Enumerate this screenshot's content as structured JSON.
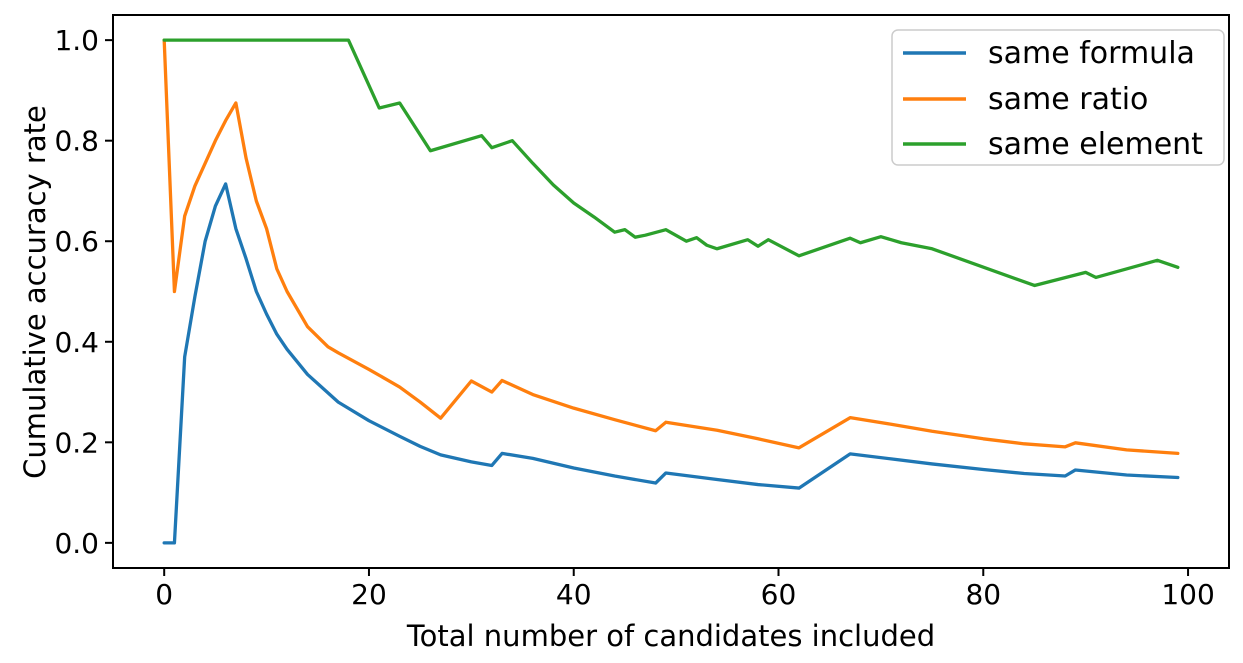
{
  "chart_data": {
    "type": "line",
    "title": "",
    "xlabel": "Total number of candidates included",
    "ylabel": "Cumulative accuracy rate",
    "xlim": [
      -5,
      104
    ],
    "ylim": [
      -0.05,
      1.05
    ],
    "grid": false,
    "xticks": {
      "values": [
        0,
        20,
        40,
        60,
        80,
        100
      ],
      "labels": [
        "0",
        "20",
        "40",
        "60",
        "80",
        "100"
      ]
    },
    "yticks": {
      "values": [
        0.0,
        0.2,
        0.4,
        0.6,
        0.8,
        1.0
      ],
      "labels": [
        "0.0",
        "0.2",
        "0.4",
        "0.6",
        "0.8",
        "1.0"
      ]
    },
    "legend": {
      "position": "upper right",
      "entries": [
        "same formula",
        "same ratio",
        "same element"
      ],
      "border_color": "#cccccc"
    },
    "colors": {
      "blue": "#1f77b4",
      "orange": "#ff7f0e",
      "green": "#2ca02c"
    },
    "series": [
      {
        "name": "same formula",
        "color": "#1f77b4",
        "points": [
          [
            0,
            0.0
          ],
          [
            1,
            0.0
          ],
          [
            2,
            0.37
          ],
          [
            3,
            0.49
          ],
          [
            4,
            0.6
          ],
          [
            5,
            0.67
          ],
          [
            6,
            0.714
          ],
          [
            7,
            0.625
          ],
          [
            8,
            0.565
          ],
          [
            9,
            0.5
          ],
          [
            10,
            0.455
          ],
          [
            11,
            0.415
          ],
          [
            12,
            0.385
          ],
          [
            14,
            0.335
          ],
          [
            17,
            0.28
          ],
          [
            20,
            0.243
          ],
          [
            23,
            0.212
          ],
          [
            25,
            0.192
          ],
          [
            27,
            0.175
          ],
          [
            30,
            0.161
          ],
          [
            32,
            0.154
          ],
          [
            33,
            0.178
          ],
          [
            36,
            0.168
          ],
          [
            40,
            0.149
          ],
          [
            44,
            0.133
          ],
          [
            48,
            0.119
          ],
          [
            49,
            0.139
          ],
          [
            54,
            0.126
          ],
          [
            58,
            0.116
          ],
          [
            62,
            0.109
          ],
          [
            67,
            0.177
          ],
          [
            71,
            0.167
          ],
          [
            75,
            0.157
          ],
          [
            80,
            0.146
          ],
          [
            84,
            0.138
          ],
          [
            88,
            0.133
          ],
          [
            89,
            0.145
          ],
          [
            94,
            0.135
          ],
          [
            99,
            0.13
          ]
        ]
      },
      {
        "name": "same ratio",
        "color": "#ff7f0e",
        "points": [
          [
            0,
            1.0
          ],
          [
            1,
            0.5
          ],
          [
            2,
            0.65
          ],
          [
            3,
            0.71
          ],
          [
            4,
            0.755
          ],
          [
            5,
            0.8
          ],
          [
            6,
            0.84
          ],
          [
            7,
            0.875
          ],
          [
            8,
            0.765
          ],
          [
            9,
            0.68
          ],
          [
            10,
            0.625
          ],
          [
            11,
            0.545
          ],
          [
            12,
            0.5
          ],
          [
            14,
            0.43
          ],
          [
            16,
            0.39
          ],
          [
            17,
            0.378
          ],
          [
            20,
            0.345
          ],
          [
            23,
            0.31
          ],
          [
            25,
            0.28
          ],
          [
            27,
            0.248
          ],
          [
            30,
            0.322
          ],
          [
            32,
            0.3
          ],
          [
            33,
            0.323
          ],
          [
            36,
            0.295
          ],
          [
            40,
            0.268
          ],
          [
            44,
            0.245
          ],
          [
            48,
            0.223
          ],
          [
            49,
            0.24
          ],
          [
            54,
            0.224
          ],
          [
            58,
            0.207
          ],
          [
            62,
            0.189
          ],
          [
            67,
            0.249
          ],
          [
            71,
            0.236
          ],
          [
            75,
            0.222
          ],
          [
            80,
            0.207
          ],
          [
            84,
            0.197
          ],
          [
            88,
            0.191
          ],
          [
            89,
            0.199
          ],
          [
            94,
            0.185
          ],
          [
            99,
            0.178
          ]
        ]
      },
      {
        "name": "same element",
        "color": "#2ca02c",
        "points": [
          [
            0,
            1.0
          ],
          [
            18,
            1.0
          ],
          [
            21,
            0.865
          ],
          [
            23,
            0.875
          ],
          [
            26,
            0.78
          ],
          [
            31,
            0.81
          ],
          [
            32,
            0.786
          ],
          [
            34,
            0.8
          ],
          [
            36,
            0.755
          ],
          [
            38,
            0.712
          ],
          [
            40,
            0.676
          ],
          [
            42,
            0.648
          ],
          [
            44,
            0.618
          ],
          [
            45,
            0.623
          ],
          [
            46,
            0.608
          ],
          [
            47,
            0.612
          ],
          [
            49,
            0.623
          ],
          [
            51,
            0.6
          ],
          [
            52,
            0.607
          ],
          [
            53,
            0.592
          ],
          [
            54,
            0.585
          ],
          [
            57,
            0.603
          ],
          [
            58,
            0.59
          ],
          [
            59,
            0.603
          ],
          [
            62,
            0.571
          ],
          [
            67,
            0.606
          ],
          [
            68,
            0.597
          ],
          [
            70,
            0.609
          ],
          [
            72,
            0.597
          ],
          [
            75,
            0.585
          ],
          [
            85,
            0.512
          ],
          [
            90,
            0.538
          ],
          [
            91,
            0.528
          ],
          [
            97,
            0.562
          ],
          [
            99,
            0.548
          ]
        ]
      }
    ]
  }
}
